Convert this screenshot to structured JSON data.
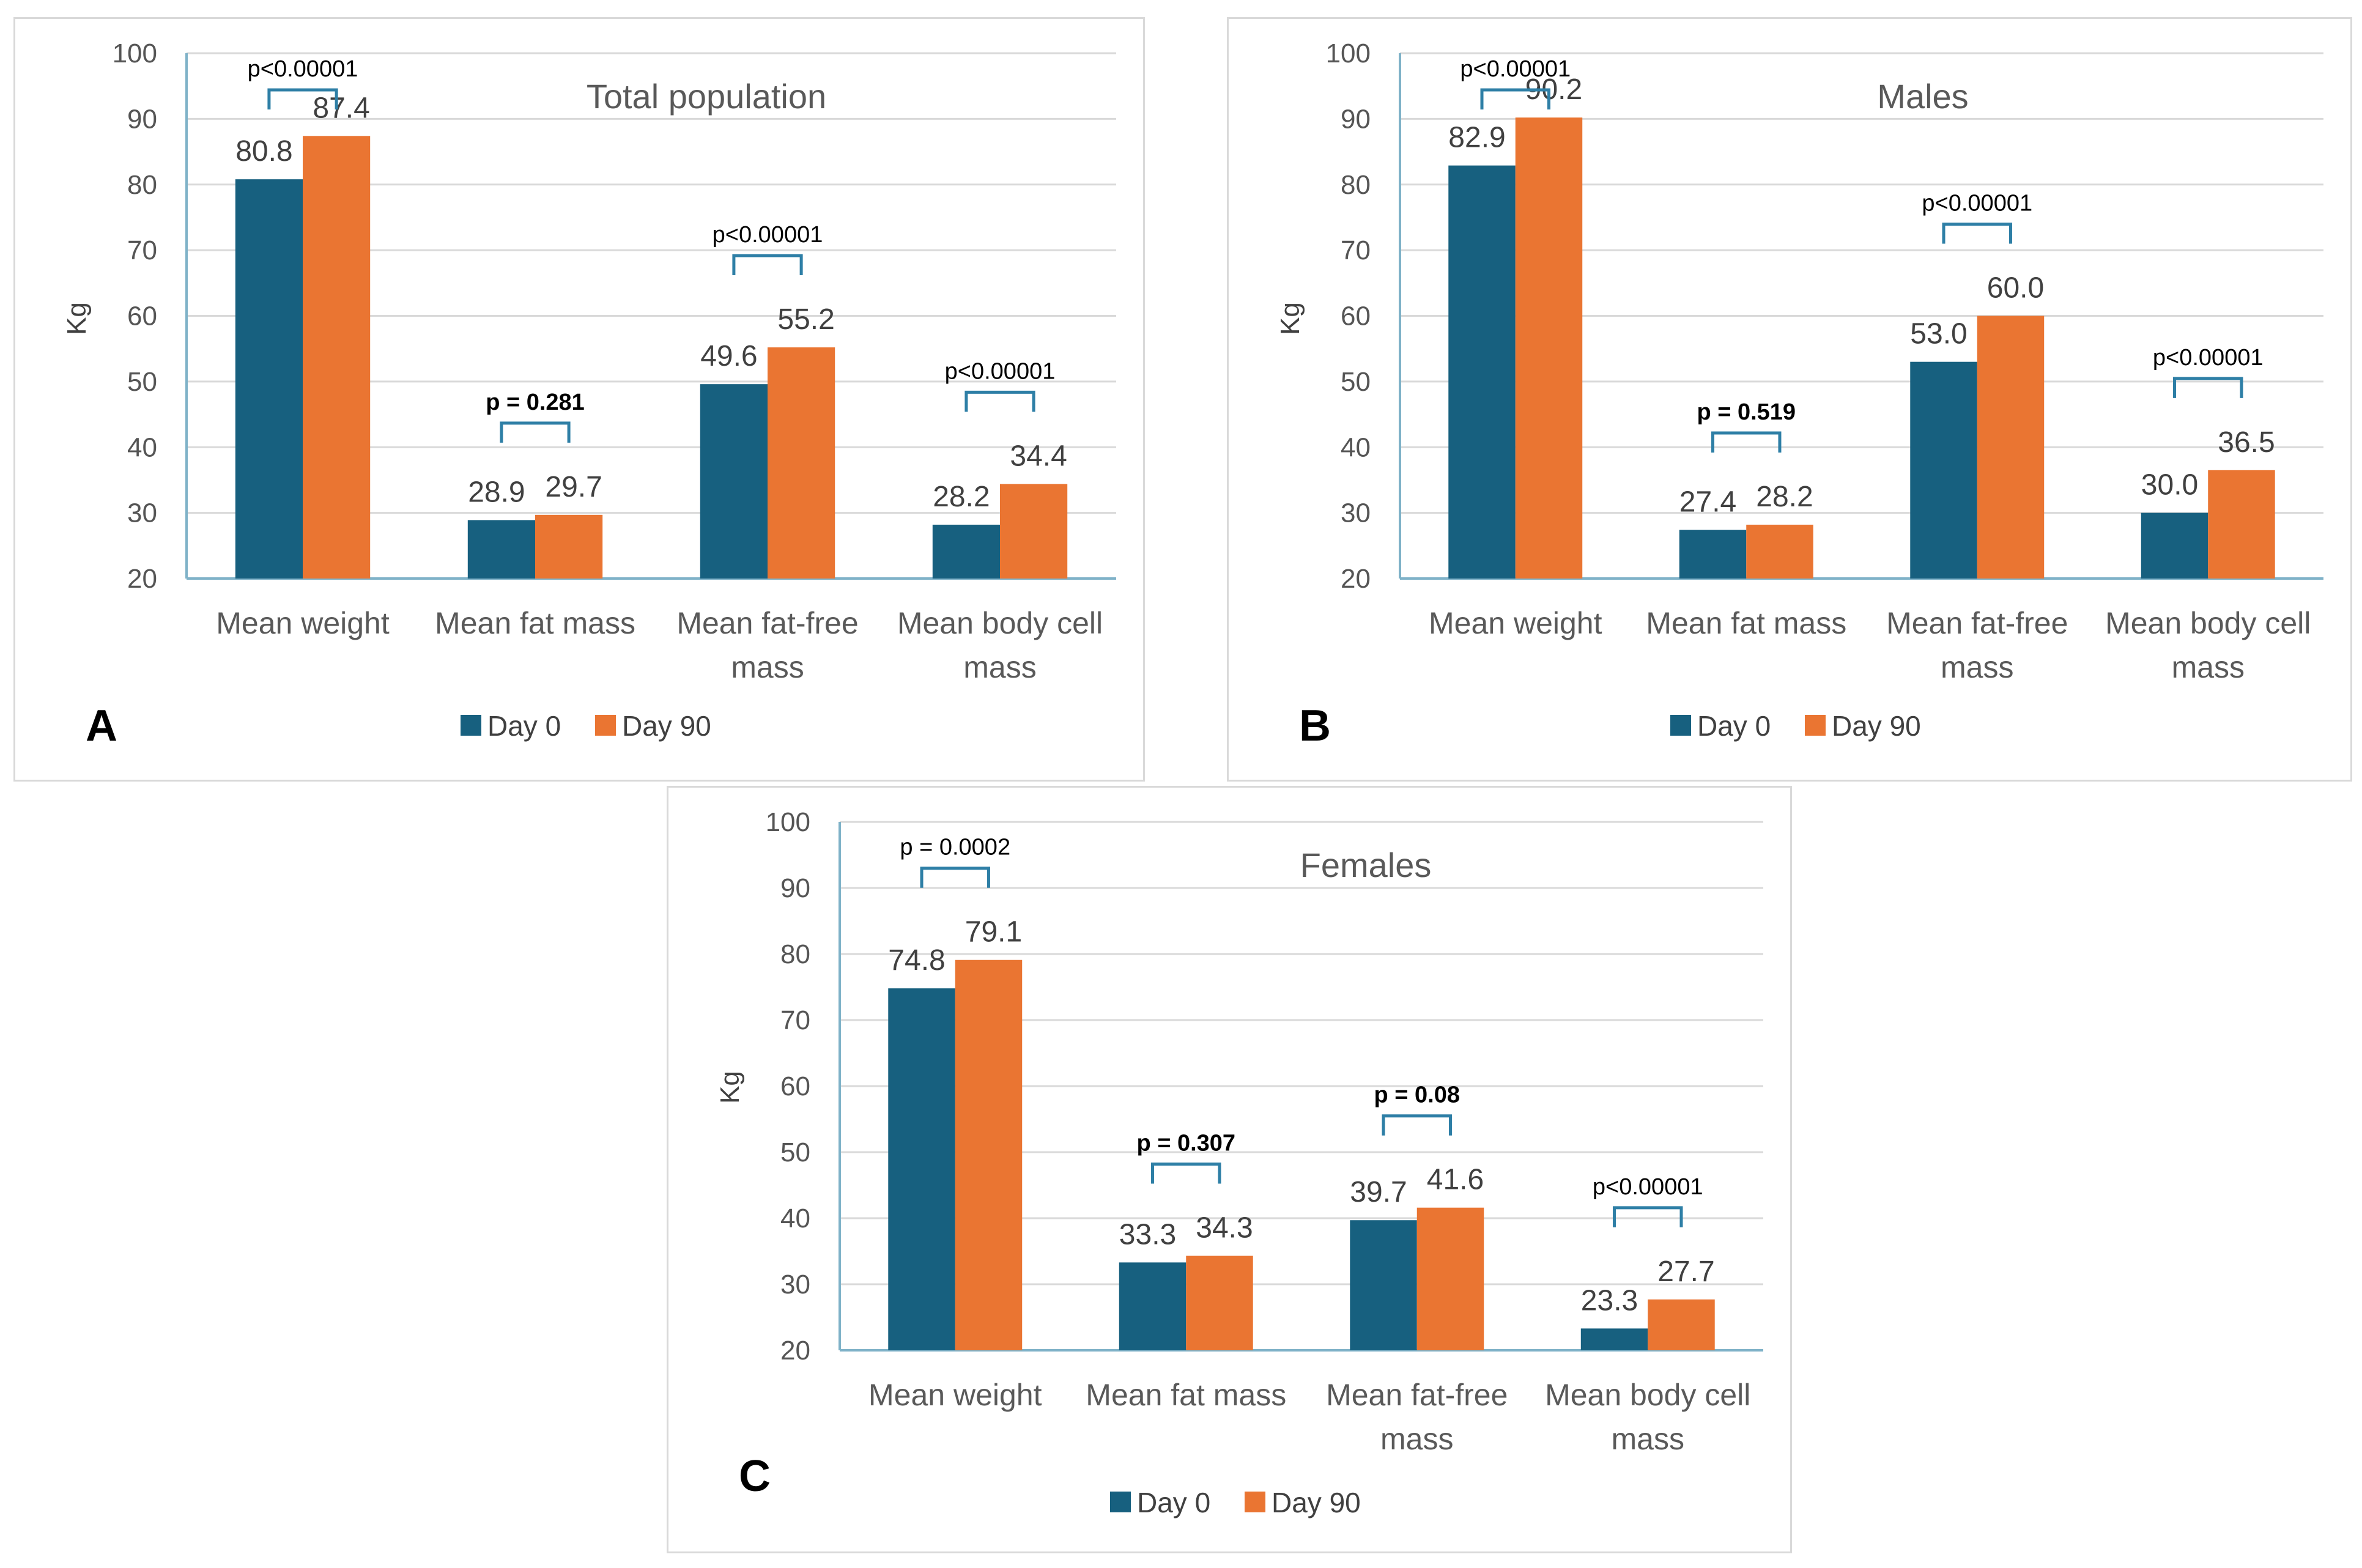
{
  "colors": {
    "day0": "#17607f",
    "day90": "#ea7532",
    "grid": "#d9d9d9",
    "axis": "#7fb2c8",
    "bracket": "#2e7fa6"
  },
  "chart_data": [
    {
      "panel": "A",
      "type": "bar",
      "title": "Total population",
      "ylabel": "Kg",
      "ylim": [
        20,
        100
      ],
      "yticks": [
        20,
        30,
        40,
        50,
        60,
        70,
        80,
        90,
        100
      ],
      "categories": [
        [
          "Mean weight"
        ],
        [
          "Mean fat mass"
        ],
        [
          "Mean fat-free",
          "mass"
        ],
        [
          "Mean body cell",
          "mass"
        ]
      ],
      "series": [
        {
          "name": "Day 0",
          "values": [
            80.8,
            28.9,
            49.6,
            28.2
          ],
          "labels": [
            "80.8",
            "28.9",
            "49.6",
            "28.2"
          ]
        },
        {
          "name": "Day 90",
          "values": [
            87.4,
            29.7,
            55.2,
            34.4
          ],
          "labels": [
            "87.4",
            "29.7",
            "55.2",
            "34.4"
          ]
        }
      ],
      "pvalues": [
        {
          "text": "p<0.00001",
          "bold": false
        },
        {
          "text": "p = 0.281",
          "bold": true
        },
        {
          "text": "p<0.00001",
          "bold": false
        },
        {
          "text": "p<0.00001",
          "bold": false
        }
      ],
      "legend": [
        "Day 0",
        "Day 90"
      ]
    },
    {
      "panel": "B",
      "type": "bar",
      "title": "Males",
      "ylabel": "Kg",
      "ylim": [
        20,
        100
      ],
      "yticks": [
        20,
        30,
        40,
        50,
        60,
        70,
        80,
        90,
        100
      ],
      "categories": [
        [
          "Mean weight"
        ],
        [
          "Mean fat mass"
        ],
        [
          "Mean fat-free",
          "mass"
        ],
        [
          "Mean body cell",
          "mass"
        ]
      ],
      "series": [
        {
          "name": "Day 0",
          "values": [
            82.9,
            27.4,
            53.0,
            30.0
          ],
          "labels": [
            "82.9",
            "27.4",
            "53.0",
            "30.0"
          ]
        },
        {
          "name": "Day 90",
          "values": [
            90.2,
            28.2,
            60.0,
            36.5
          ],
          "labels": [
            "90.2",
            "28.2",
            "60.0",
            "36.5"
          ]
        }
      ],
      "pvalues": [
        {
          "text": "p<0.00001",
          "bold": false
        },
        {
          "text": "p = 0.519",
          "bold": true
        },
        {
          "text": "p<0.00001",
          "bold": false
        },
        {
          "text": "p<0.00001",
          "bold": false
        }
      ],
      "legend": [
        "Day 0",
        "Day 90"
      ]
    },
    {
      "panel": "C",
      "type": "bar",
      "title": "Females",
      "ylabel": "Kg",
      "ylim": [
        20,
        100
      ],
      "yticks": [
        20,
        30,
        40,
        50,
        60,
        70,
        80,
        90,
        100
      ],
      "categories": [
        [
          "Mean weight"
        ],
        [
          "Mean fat mass"
        ],
        [
          "Mean fat-free",
          "mass"
        ],
        [
          "Mean body cell",
          "mass"
        ]
      ],
      "series": [
        {
          "name": "Day 0",
          "values": [
            74.8,
            33.3,
            39.7,
            23.3
          ],
          "labels": [
            "74.8",
            "33.3",
            "39.7",
            "23.3"
          ]
        },
        {
          "name": "Day 90",
          "values": [
            79.1,
            34.3,
            41.6,
            27.7
          ],
          "labels": [
            "79.1",
            "34.3",
            "41.6",
            "27.7"
          ]
        }
      ],
      "pvalues": [
        {
          "text": "p = 0.0002",
          "bold": false
        },
        {
          "text": "p = 0.307",
          "bold": true
        },
        {
          "text": "p = 0.08",
          "bold": true
        },
        {
          "text": "p<0.00001",
          "bold": false
        }
      ],
      "legend": [
        "Day 0",
        "Day 90"
      ]
    }
  ]
}
